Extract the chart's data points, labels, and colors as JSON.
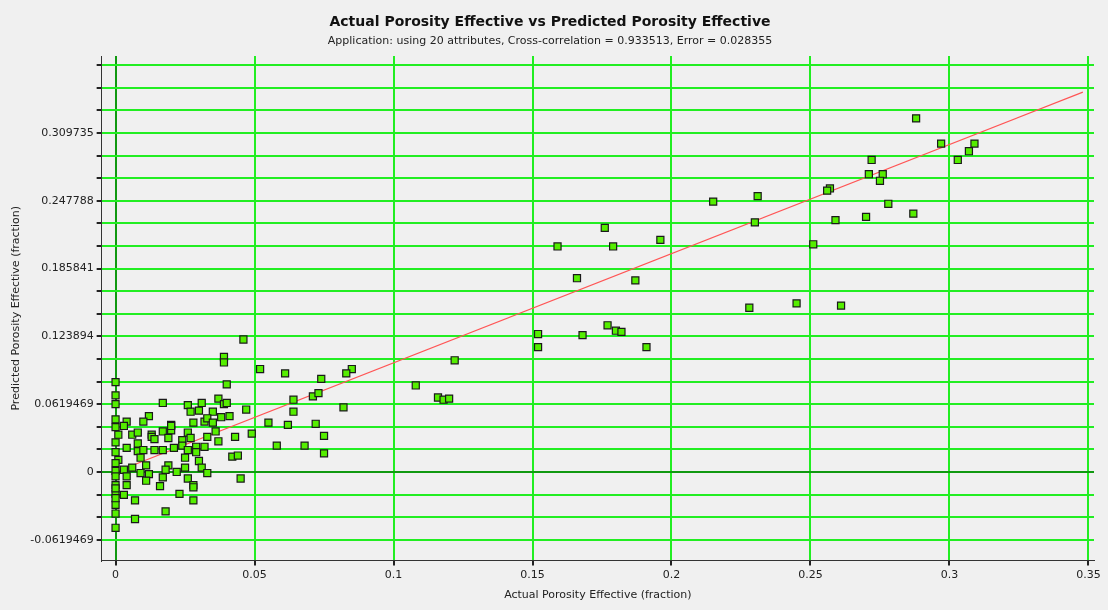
{
  "chart_data": {
    "type": "scatter",
    "title": "Actual Porosity Effective vs Predicted Porosity Effective",
    "subtitle": "Application: using 20 attributes, Cross-correlation = 0.933513, Error = 0.028355",
    "xlabel": "Actual Porosity Effective (fraction)",
    "ylabel": "Predicted Porosity Effective (fraction)",
    "grid": true,
    "xlim": [
      -0.005,
      0.352
    ],
    "ylim": [
      -0.081,
      0.38
    ],
    "xticks": [
      0,
      0.05,
      0.1,
      0.15,
      0.2,
      0.25,
      0.3,
      0.35
    ],
    "yticks": [
      {
        "value": -0.0619469,
        "label": "-0.0619469"
      },
      {
        "value": -0.0412979,
        "label": null
      },
      {
        "value": -0.020649,
        "label": null
      },
      0,
      {
        "value": 0.020649,
        "label": null
      },
      {
        "value": 0.0412979,
        "label": null
      },
      {
        "value": 0.0619469,
        "label": "0.0619469"
      },
      {
        "value": 0.0825958,
        "label": null
      },
      {
        "value": 0.1032448,
        "label": null
      },
      {
        "value": 0.123894,
        "label": "0.123894"
      },
      {
        "value": 0.1445428,
        "label": null
      },
      {
        "value": 0.1651917,
        "label": null
      },
      {
        "value": 0.185841,
        "label": "0.185841"
      },
      {
        "value": 0.2064897,
        "label": null
      },
      {
        "value": 0.2271386,
        "label": null
      },
      {
        "value": 0.247788,
        "label": "0.247788"
      },
      {
        "value": 0.2684366,
        "label": null
      },
      {
        "value": 0.2890855,
        "label": null
      },
      {
        "value": 0.309735,
        "label": "0.309735"
      },
      {
        "value": 0.3303834,
        "label": null
      },
      {
        "value": 0.3510323,
        "label": null
      },
      {
        "value": 0.3716813,
        "label": null
      }
    ],
    "series": [
      {
        "marker": "square",
        "color": "#55ee00",
        "x": [
          0.288,
          0.297,
          0.309,
          0.307,
          0.303,
          0.272,
          0.271,
          0.276,
          0.275,
          0.257,
          0.256,
          0.231,
          0.215,
          0.278,
          0.23,
          0.259,
          0.27,
          0.287,
          0.251,
          0.228,
          0.245,
          0.261,
          0.176,
          0.159,
          0.179,
          0.196,
          0.166,
          0.187,
          0.177,
          0.152,
          0.18,
          0.182,
          0.168,
          0.152,
          0.191,
          0.122,
          0.085,
          0.083,
          0.074,
          0.108,
          0.116,
          0.118,
          0.12,
          0.046,
          0.039,
          0.039,
          0.052,
          0.061,
          0,
          0.04,
          0,
          0,
          0.017,
          0.026,
          0.031,
          0.071,
          0.073,
          0.064,
          0.037,
          0.039,
          0.04,
          0.082,
          0.064,
          0.047,
          0.03,
          0.027,
          0.035,
          0.012,
          0.004,
          0.01,
          0.02,
          0.028,
          0.032,
          0.033,
          0.035,
          0.038,
          0.041,
          0.003,
          0.055,
          0.062,
          0.072,
          0.001,
          0.006,
          0.008,
          0.013,
          0.017,
          0.02,
          0.02,
          0.026,
          0.036,
          0.049,
          0.013,
          0.014,
          0.019,
          0.024,
          0.027,
          0.033,
          0.043,
          0.075,
          0,
          0.004,
          0.008,
          0.014,
          0.017,
          0.021,
          0.024,
          0.029,
          0.037,
          0.058,
          0.068,
          0,
          0.008,
          0.01,
          0.026,
          0.032,
          0.029,
          0.042,
          0.044,
          0.075,
          0.001,
          0.009,
          0.025,
          0.03,
          0.011,
          0.006,
          0.019,
          0.025,
          0.031,
          0.003,
          0,
          0.009,
          0.012,
          0.018,
          0.022,
          0.033,
          0.045,
          0,
          0.004,
          0.017,
          0.026,
          0.011,
          0.004,
          0.028,
          0.028,
          0,
          0.016,
          0,
          0.003,
          0.023,
          0.007,
          0.028,
          0,
          0,
          0.018,
          0.007,
          0,
          0,
          0,
          0,
          0,
          0
        ],
        "values": [
          0.323,
          0.3,
          0.3,
          0.293,
          0.285,
          0.285,
          0.272,
          0.272,
          0.266,
          0.259,
          0.257,
          0.252,
          0.247,
          0.245,
          0.228,
          0.23,
          0.233,
          0.236,
          0.208,
          0.15,
          0.154,
          0.152,
          0.223,
          0.206,
          0.206,
          0.212,
          0.177,
          0.175,
          0.134,
          0.126,
          0.129,
          0.128,
          0.125,
          0.114,
          0.114,
          0.102,
          0.094,
          0.09,
          0.085,
          0.079,
          0.068,
          0.066,
          0.067,
          0.121,
          0.105,
          0.1,
          0.094,
          0.09,
          0.082,
          0.08,
          0.07,
          0.062,
          0.063,
          0.061,
          0.063,
          0.069,
          0.072,
          0.066,
          0.067,
          0.062,
          0.063,
          0.059,
          0.055,
          0.057,
          0.056,
          0.055,
          0.055,
          0.051,
          0.046,
          0.046,
          0.043,
          0.045,
          0.046,
          0.049,
          0.045,
          0.05,
          0.051,
          0.042,
          0.045,
          0.043,
          0.044,
          0.034,
          0.034,
          0.036,
          0.034,
          0.037,
          0.038,
          0.042,
          0.036,
          0.037,
          0.035,
          0.032,
          0.03,
          0.031,
          0.029,
          0.031,
          0.032,
          0.032,
          0.033,
          0.027,
          0.022,
          0.026,
          0.02,
          0.02,
          0.022,
          0.024,
          0.023,
          0.028,
          0.024,
          0.024,
          0.018,
          0.019,
          0.02,
          0.02,
          0.023,
          0.018,
          0.014,
          0.015,
          0.017,
          0.011,
          0.013,
          0.013,
          0.01,
          0.006,
          0.004,
          0.006,
          0.004,
          0.004,
          0.002,
          0.001,
          -0.001,
          -0.002,
          0.002,
          0,
          -0.001,
          -0.006,
          -0.004,
          -0.004,
          -0.005,
          -0.006,
          -0.008,
          -0.012,
          -0.012,
          -0.014,
          -0.012,
          -0.013,
          -0.02,
          -0.021,
          -0.02,
          -0.026,
          -0.026,
          -0.03,
          -0.038,
          -0.036,
          -0.043,
          -0.051,
          0.048,
          0.041,
          0.008,
          -0.015,
          -0.024
        ]
      },
      {
        "type": "line",
        "color": "#ff5555",
        "x": [
          0,
          0.348
        ],
        "values": [
          0,
          0.347
        ]
      }
    ]
  }
}
